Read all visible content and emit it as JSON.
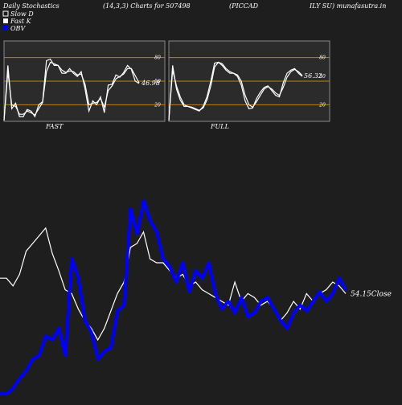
{
  "header": {
    "title": "Daily Stochastics",
    "params": "(14,3,3) Charts for 507498",
    "company_part1": "(PICCAD",
    "company_part2": "ILY SU) munafasutra.in"
  },
  "legend": [
    {
      "label": "Slow  D",
      "color": "#ffffff"
    },
    {
      "label": "Fast K",
      "color": "#ffffff"
    },
    {
      "label": "OBV",
      "color": "#0000ff"
    }
  ],
  "colors": {
    "background": "#1e1e1e",
    "panel": "#2b2b2b",
    "level_line": "#b8860b",
    "k_line": "#ffffff",
    "obv_line": "#0000ff",
    "close_line": "#ffffff"
  },
  "chart_data": [
    {
      "type": "line",
      "panel": "fast",
      "title": "FAST",
      "ylim": [
        0,
        100
      ],
      "levels": [
        20,
        50,
        80
      ],
      "tick_labels": [
        "80",
        "50",
        "20"
      ],
      "last_value_label": "46.98",
      "series": [
        {
          "values": [
            0,
            70,
            15,
            22,
            5,
            5,
            14,
            12,
            5,
            20,
            24,
            76,
            78,
            70,
            70,
            60,
            60,
            66,
            60,
            56,
            62,
            40,
            12,
            25,
            20,
            30,
            10,
            45,
            46,
            58,
            55,
            61,
            70,
            65,
            50,
            47
          ]
        },
        {
          "values": [
            0,
            62,
            20,
            18,
            8,
            8,
            12,
            10,
            7,
            15,
            23,
            62,
            74,
            72,
            70,
            64,
            61,
            63,
            62,
            58,
            59,
            46,
            20,
            22,
            23,
            28,
            17,
            38,
            44,
            53,
            56,
            59,
            66,
            66,
            57,
            48
          ]
        }
      ]
    },
    {
      "type": "line",
      "panel": "full",
      "title": "FULL",
      "ylim": [
        0,
        100
      ],
      "levels": [
        20,
        50,
        80
      ],
      "tick_labels": [
        "80",
        "50",
        "20"
      ],
      "last_value_label": "56.32",
      "secondary_label": "50",
      "series": [
        {
          "values": [
            0,
            70,
            40,
            26,
            18,
            18,
            16,
            14,
            12,
            18,
            30,
            50,
            73,
            74,
            70,
            64,
            60,
            60,
            56,
            45,
            25,
            15,
            16,
            28,
            36,
            42,
            44,
            38,
            32,
            30,
            48,
            60,
            64,
            66,
            60,
            56
          ]
        },
        {
          "values": [
            0,
            64,
            44,
            30,
            20,
            18,
            17,
            15,
            13,
            16,
            26,
            44,
            68,
            74,
            72,
            66,
            62,
            60,
            58,
            50,
            32,
            20,
            17,
            24,
            32,
            40,
            43,
            40,
            35,
            32,
            42,
            55,
            62,
            65,
            62,
            57
          ]
        }
      ]
    },
    {
      "type": "line",
      "panel": "price",
      "ylim": [
        0,
        100
      ],
      "last_value_label": "54.15",
      "last_value_suffix": "Close",
      "series": [
        {
          "name": "OBV",
          "values": [
            2,
            2,
            5,
            10,
            14,
            20,
            22,
            32,
            30,
            36,
            22,
            72,
            62,
            40,
            34,
            20,
            24,
            26,
            45,
            48,
            98,
            85,
            102,
            92,
            86,
            72,
            68,
            60,
            70,
            55,
            66,
            62,
            70,
            54,
            46,
            50,
            44,
            52,
            42,
            44,
            50,
            52,
            46,
            40,
            36,
            44,
            48,
            45,
            50,
            55,
            50,
            54,
            62,
            56
          ]
        },
        {
          "name": "Close",
          "values": [
            62,
            62,
            58,
            64,
            76,
            80,
            84,
            88,
            75,
            66,
            56,
            54,
            46,
            40,
            36,
            30,
            36,
            45,
            54,
            60,
            78,
            80,
            86,
            72,
            70,
            70,
            66,
            62,
            64,
            58,
            60,
            56,
            54,
            52,
            50,
            48,
            60,
            50,
            54,
            52,
            48,
            50,
            46,
            40,
            44,
            50,
            46,
            54,
            50,
            54,
            56,
            60,
            58,
            54
          ]
        }
      ]
    }
  ]
}
